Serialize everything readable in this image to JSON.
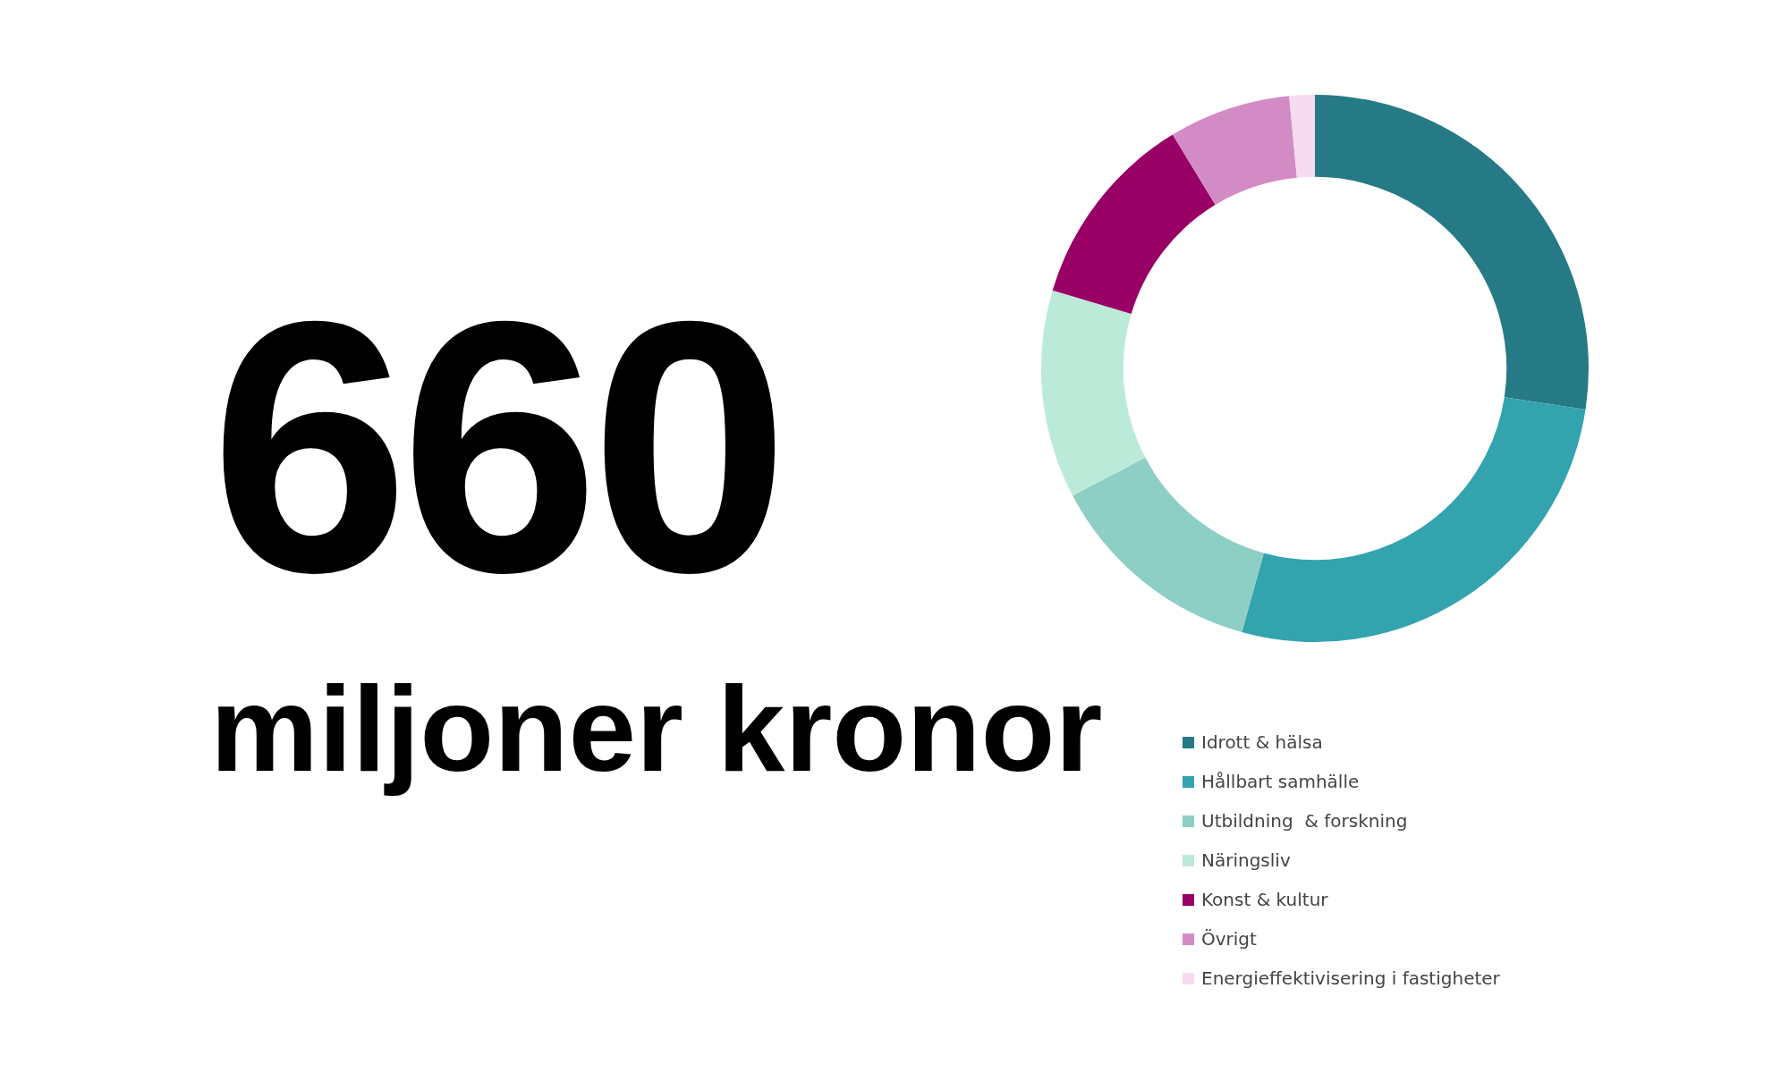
{
  "chart_data": {
    "type": "donut",
    "categories": [
      "Idrott & hälsa",
      "Hållbart samhälle",
      "Utbildning  & forskning",
      "Näringsliv",
      "Konst & kultur",
      "Övrigt",
      "Energieffektivisering i fastigheter"
    ],
    "values": [
      27.4,
      26.9,
      13.0,
      12.3,
      11.7,
      7.2,
      1.5
    ],
    "colors": [
      "#267a85",
      "#33a3ae",
      "#8dcfc4",
      "#bcead9",
      "#990066",
      "#d38bc5",
      "#f6dbf1"
    ],
    "legend": "bottom",
    "annotations": [
      "660",
      "miljoner kronor"
    ]
  }
}
